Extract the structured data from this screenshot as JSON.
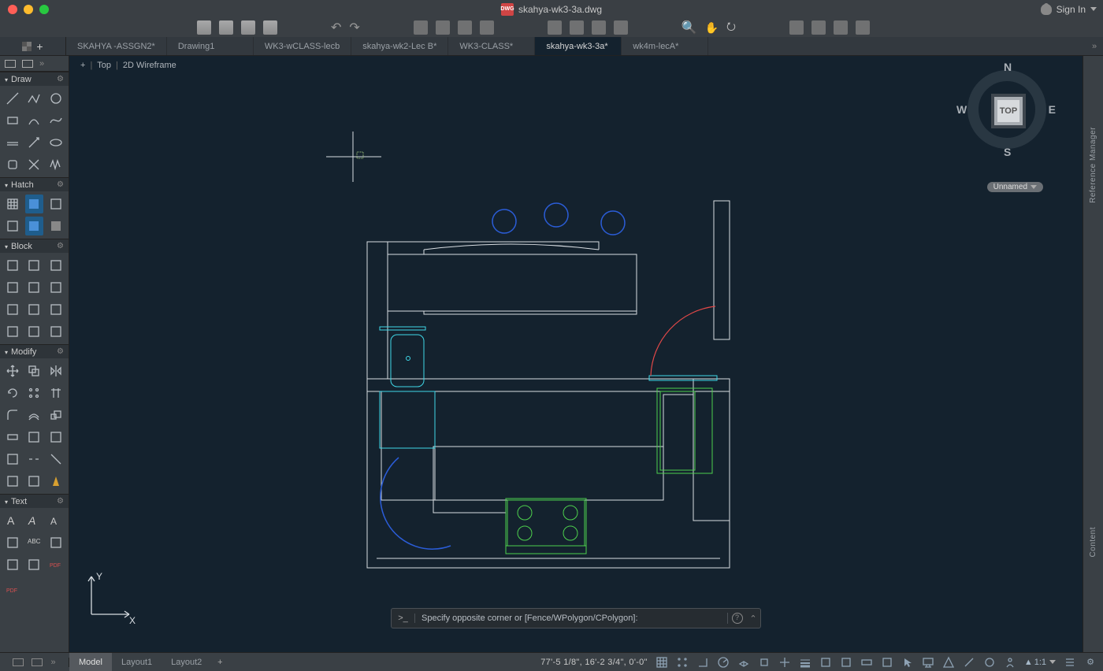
{
  "title_file": "skahya-wk3-3a.dwg",
  "dwg_badge": "DWG",
  "signin_label": "Sign In",
  "doctabs": [
    {
      "label": "SKAHYA -ASSGN2*",
      "active": false
    },
    {
      "label": "Drawing1",
      "active": false
    },
    {
      "label": "WK3-wCLASS-lecb",
      "active": false
    },
    {
      "label": "skahya-wk2-Lec B*",
      "active": false
    },
    {
      "label": "WK3-CLASS*",
      "active": false
    },
    {
      "label": "skahya-wk3-3a*",
      "active": true
    },
    {
      "label": "wk4m-lecA*",
      "active": false
    }
  ],
  "view_controls": {
    "dash": "+",
    "view": "Top",
    "style": "2D Wireframe"
  },
  "viewcube": {
    "face": "TOP",
    "n": "N",
    "e": "E",
    "s": "S",
    "w": "W",
    "tag": "Unnamed"
  },
  "panels": {
    "draw": "Draw",
    "hatch": "Hatch",
    "block": "Block",
    "modify": "Modify",
    "text": "Text"
  },
  "right_labels": {
    "ref": "Reference Manager",
    "content": "Content"
  },
  "cmdline": {
    "prompt": ">_",
    "text": "Specify opposite corner or [Fence/WPolygon/CPolygon]:",
    "help": "?"
  },
  "ucs": {
    "x": "X",
    "y": "Y"
  },
  "statusbar": {
    "tabs": [
      {
        "label": "Model",
        "active": true
      },
      {
        "label": "Layout1",
        "active": false
      },
      {
        "label": "Layout2",
        "active": false
      }
    ],
    "coords": "77'-5 1/8\",  16'-2 3/4\", 0'-0\"",
    "ratio": "1:1"
  },
  "colors": {
    "canvas": "#14222e",
    "white": "#d8dde2",
    "blue": "#2b5dd8",
    "cyan": "#3fd8e8",
    "green": "#4dd04d",
    "red": "#e04848"
  }
}
